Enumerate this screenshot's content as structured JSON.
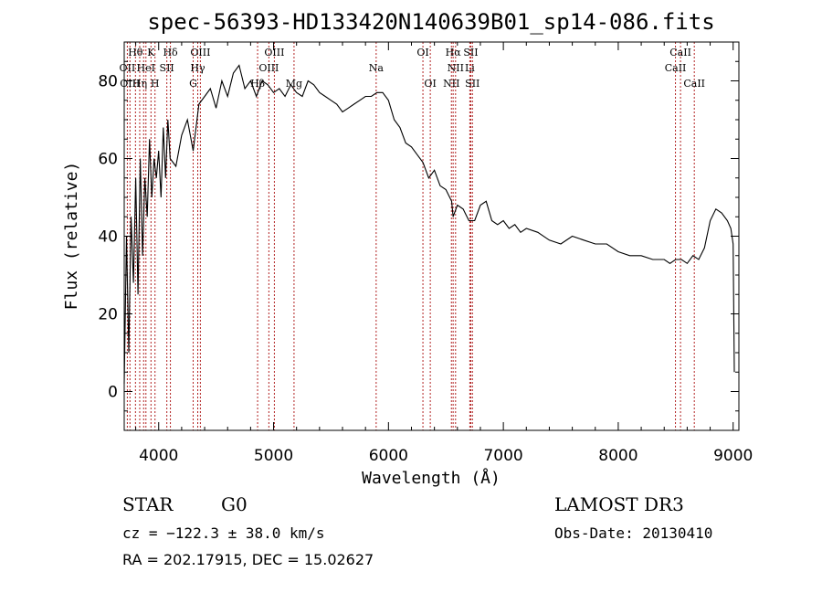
{
  "chart_data": {
    "type": "line",
    "title": "spec-56393-HD133420N140639B01_sp14-086.fits",
    "xlabel": "Wavelength (Å)",
    "ylabel": "Flux (relative)",
    "xlim": [
      3700,
      9050
    ],
    "ylim": [
      -10,
      90
    ],
    "xticks": [
      4000,
      5000,
      6000,
      7000,
      8000,
      9000
    ],
    "yticks": [
      0,
      20,
      40,
      60,
      80
    ],
    "grid": false,
    "series": [
      {
        "x": [
          3700,
          3720,
          3740,
          3760,
          3780,
          3800,
          3820,
          3840,
          3860,
          3880,
          3900,
          3920,
          3940,
          3960,
          3980,
          4000,
          4020,
          4040,
          4060,
          4080,
          4100,
          4150,
          4200,
          4250,
          4300,
          4350,
          4400,
          4450,
          4500,
          4550,
          4600,
          4650,
          4700,
          4750,
          4800,
          4850,
          4900,
          4950,
          5000,
          5050,
          5100,
          5150,
          5200,
          5250,
          5300,
          5350,
          5400,
          5450,
          5500,
          5550,
          5600,
          5650,
          5700,
          5750,
          5800,
          5850,
          5900,
          5950,
          6000,
          6050,
          6100,
          6150,
          6200,
          6250,
          6300,
          6350,
          6400,
          6450,
          6500,
          6550,
          6563,
          6600,
          6650,
          6700,
          6750,
          6800,
          6850,
          6900,
          6950,
          7000,
          7050,
          7100,
          7150,
          7200,
          7300,
          7400,
          7500,
          7600,
          7700,
          7800,
          7900,
          8000,
          8100,
          8200,
          8300,
          8400,
          8450,
          8500,
          8550,
          8600,
          8650,
          8700,
          8750,
          8800,
          8850,
          8900,
          8950,
          8980,
          9000,
          9010
        ],
        "y": [
          2,
          40,
          10,
          45,
          28,
          55,
          25,
          60,
          35,
          55,
          45,
          65,
          50,
          60,
          55,
          62,
          50,
          68,
          55,
          70,
          60,
          58,
          66,
          70,
          62,
          74,
          76,
          78,
          73,
          80,
          76,
          82,
          84,
          78,
          80,
          76,
          80,
          79,
          77,
          78,
          76,
          79,
          77,
          76,
          80,
          79,
          77,
          76,
          75,
          74,
          72,
          73,
          74,
          75,
          76,
          76,
          77,
          77,
          75,
          70,
          68,
          64,
          63,
          61,
          59,
          55,
          57,
          53,
          52,
          49,
          45,
          48,
          47,
          44,
          44,
          48,
          49,
          44,
          43,
          44,
          42,
          43,
          41,
          42,
          41,
          39,
          38,
          40,
          39,
          38,
          38,
          36,
          35,
          35,
          34,
          34,
          33,
          34,
          34,
          33,
          35,
          34,
          37,
          44,
          47,
          46,
          44,
          42,
          38,
          5
        ],
        "color": "#000000"
      }
    ],
    "lines": [
      {
        "x": 3727,
        "color": "#b22222"
      },
      {
        "x": 3750,
        "color": "#b22222"
      },
      {
        "x": 3798,
        "color": "#b22222"
      },
      {
        "x": 3835,
        "color": "#b22222"
      },
      {
        "x": 3869,
        "color": "#b22222"
      },
      {
        "x": 3889,
        "color": "#b22222"
      },
      {
        "x": 3933,
        "color": "#b22222"
      },
      {
        "x": 3968,
        "color": "#b22222"
      },
      {
        "x": 4071,
        "color": "#b22222"
      },
      {
        "x": 4102,
        "color": "#b22222"
      },
      {
        "x": 4300,
        "color": "#b22222"
      },
      {
        "x": 4340,
        "color": "#b22222"
      },
      {
        "x": 4363,
        "color": "#b22222"
      },
      {
        "x": 4861,
        "color": "#b22222"
      },
      {
        "x": 4959,
        "color": "#b22222"
      },
      {
        "x": 5007,
        "color": "#b22222"
      },
      {
        "x": 5178,
        "color": "#b22222"
      },
      {
        "x": 5893,
        "color": "#b22222"
      },
      {
        "x": 6300,
        "color": "#b22222"
      },
      {
        "x": 6364,
        "color": "#b22222"
      },
      {
        "x": 6548,
        "color": "#b22222"
      },
      {
        "x": 6563,
        "color": "#b22222"
      },
      {
        "x": 6584,
        "color": "#b22222"
      },
      {
        "x": 6708,
        "color": "#b22222"
      },
      {
        "x": 6717,
        "color": "#b22222"
      },
      {
        "x": 6731,
        "color": "#b22222"
      },
      {
        "x": 8498,
        "color": "#b22222"
      },
      {
        "x": 8542,
        "color": "#b22222"
      },
      {
        "x": 8662,
        "color": "#b22222"
      }
    ],
    "line_labels": [
      {
        "text": "Hθ",
        "x": 3798,
        "row": 0
      },
      {
        "text": "K",
        "x": 3933,
        "row": 0
      },
      {
        "text": "Hδ",
        "x": 4102,
        "row": 0
      },
      {
        "text": "OIII",
        "x": 4363,
        "row": 0
      },
      {
        "text": "OIII",
        "x": 5007,
        "row": 0
      },
      {
        "text": "OI",
        "x": 6300,
        "row": 0
      },
      {
        "text": "Hα",
        "x": 6563,
        "row": 0
      },
      {
        "text": "SII",
        "x": 6717,
        "row": 0
      },
      {
        "text": "CaII",
        "x": 8542,
        "row": 0
      },
      {
        "text": "OII",
        "x": 3727,
        "row": 1
      },
      {
        "text": "HeI",
        "x": 3889,
        "row": 1
      },
      {
        "text": "SII",
        "x": 4071,
        "row": 1
      },
      {
        "text": "Hγ",
        "x": 4340,
        "row": 1
      },
      {
        "text": "OIII",
        "x": 4959,
        "row": 1
      },
      {
        "text": "Na",
        "x": 5893,
        "row": 1
      },
      {
        "text": "NII",
        "x": 6584,
        "row": 1
      },
      {
        "text": "Li",
        "x": 6708,
        "row": 1
      },
      {
        "text": "CaII",
        "x": 8498,
        "row": 1
      },
      {
        "text": "OIII",
        "x": 3750,
        "row": 2
      },
      {
        "text": "Hη",
        "x": 3835,
        "row": 2
      },
      {
        "text": "H",
        "x": 3968,
        "row": 2
      },
      {
        "text": "G",
        "x": 4300,
        "row": 2
      },
      {
        "text": "Hβ",
        "x": 4861,
        "row": 2
      },
      {
        "text": "Mg",
        "x": 5178,
        "row": 2
      },
      {
        "text": "OI",
        "x": 6364,
        "row": 2
      },
      {
        "text": "NII",
        "x": 6548,
        "row": 2
      },
      {
        "text": "SII",
        "x": 6731,
        "row": 2
      },
      {
        "text": "CaII",
        "x": 8662,
        "row": 2
      }
    ]
  },
  "info": {
    "object_class": "STAR",
    "subclass": "G0",
    "survey": "LAMOST DR3",
    "velocity": "cz = −122.3 ± 38.0 km/s",
    "obs_date": "Obs-Date: 20130410",
    "coords": "RA = 202.17915, DEC =  15.02627"
  }
}
